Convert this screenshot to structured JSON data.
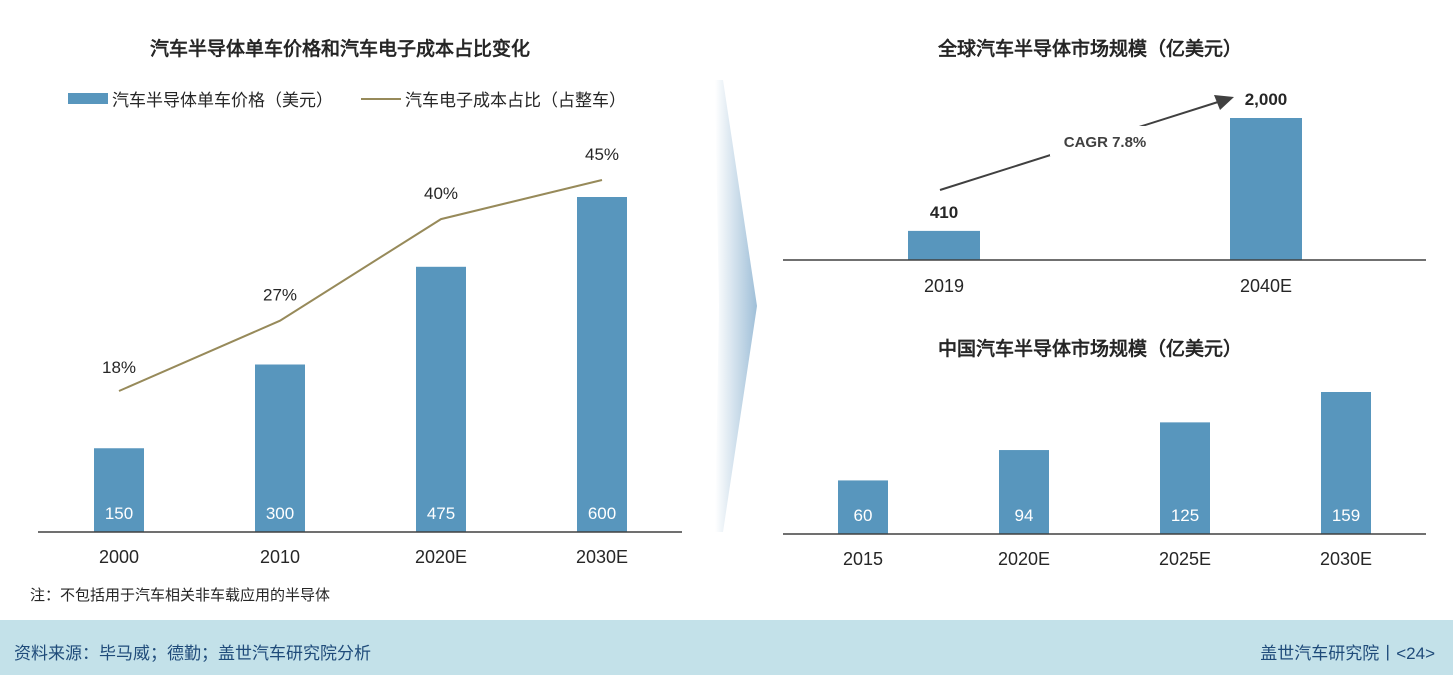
{
  "left_chart": {
    "title": "汽车半导体单车价格和汽车电子成本占比变化",
    "legend": {
      "bar": "汽车半导体单车价格（美元）",
      "line": "汽车电子成本占比（占整车）"
    },
    "note": "注：不包括用于汽车相关非车载应用的半导体"
  },
  "right_top": {
    "title": "全球汽车半导体市场规模（亿美元）",
    "cagr": "CAGR 7.8%"
  },
  "right_bottom": {
    "title": "中国汽车半导体市场规模（亿美元）"
  },
  "footer": {
    "source": "资料来源：毕马威；德勤；盖世汽车研究院分析",
    "brand": "盖世汽车研究院丨<24>"
  },
  "colors": {
    "bar": "#5896bd",
    "line": "#978a5a",
    "footer_bg": "#c3e1e9",
    "footer_text": "#1f4b7a"
  },
  "chart_data": [
    {
      "type": "bar",
      "categories": [
        "2000",
        "2010",
        "2020E",
        "2030E"
      ],
      "series": [
        {
          "name": "汽车半导体单车价格（美元）",
          "type": "bar",
          "values": [
            150,
            300,
            475,
            600
          ],
          "labels": [
            "150",
            "300",
            "475",
            "600"
          ]
        },
        {
          "name": "汽车电子成本占比（占整车）",
          "type": "line",
          "values": [
            18,
            27,
            40,
            45
          ],
          "labels": [
            "18%",
            "27%",
            "40%",
            "45%"
          ]
        }
      ],
      "title": "汽车半导体单车价格和汽车电子成本占比变化",
      "ylim": [
        0,
        700
      ]
    },
    {
      "type": "bar",
      "categories": [
        "2019",
        "2040E"
      ],
      "values": [
        410,
        2000
      ],
      "labels": [
        "410",
        "2,000"
      ],
      "title": "全球汽车半导体市场规模（亿美元）",
      "annotation": "CAGR 7.8%",
      "ylim": [
        0,
        2000
      ]
    },
    {
      "type": "bar",
      "categories": [
        "2015",
        "2020E",
        "2025E",
        "2030E"
      ],
      "values": [
        60,
        94,
        125,
        159
      ],
      "labels": [
        "60",
        "94",
        "125",
        "159"
      ],
      "title": "中国汽车半导体市场规模（亿美元）",
      "ylim": [
        0,
        170
      ]
    }
  ]
}
